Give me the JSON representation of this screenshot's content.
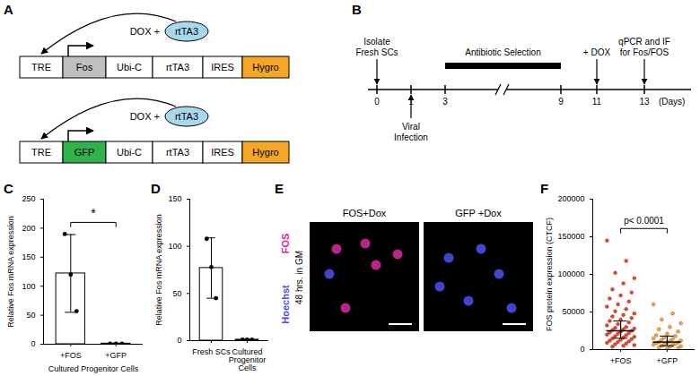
{
  "panel_labels": [
    "A",
    "B",
    "C",
    "D",
    "E",
    "F"
  ],
  "constructs": [
    {
      "parts": [
        "TRE",
        "Fos",
        "Ubi-C",
        "rtTA3",
        "IRES",
        "Hygro"
      ],
      "colors": [
        "#ffffff",
        "#bfbfbf",
        "#ffffff",
        "#ffffff",
        "#ffffff",
        "#f5a623"
      ],
      "inducer": "DOX +",
      "activator": "rtTA3",
      "activator_color": "#a8d8ee"
    },
    {
      "parts": [
        "TRE",
        "GFP",
        "Ubi-C",
        "rtTA3",
        "IRES",
        "Hygro"
      ],
      "colors": [
        "#ffffff",
        "#2fb34a",
        "#ffffff",
        "#ffffff",
        "#ffffff",
        "#f5a623"
      ],
      "inducer": "DOX +",
      "activator": "rtTA3",
      "activator_color": "#a8d8ee"
    }
  ],
  "timeline": {
    "axis_label": "(Days)",
    "days": [
      0,
      1,
      3,
      9,
      11,
      13
    ],
    "events": [
      {
        "day": 0,
        "text": "Isolate Fresh SCs"
      },
      {
        "day": 1,
        "text": "Viral Infection"
      },
      {
        "day": 11,
        "text": "+ DOX"
      },
      {
        "day": 13,
        "text": "qPCR and IF for Fos/FOS"
      }
    ],
    "interval": {
      "from": 3,
      "to": 9,
      "text": "Antibiotic Selection"
    }
  },
  "images": {
    "row_label": "48 hrs. in GM",
    "stains": [
      {
        "name": "FOS",
        "color": "#e0218a"
      },
      {
        "name": "Hoechst",
        "color": "#4a4ae6"
      }
    ],
    "panels": [
      "FOS+Dox",
      "GFP +Dox"
    ]
  },
  "chart_data": [
    {
      "type": "bar",
      "categories": [
        "+FOS",
        "+GFP"
      ],
      "xlabel": "Cultured Progenitor Cells",
      "ylabel": "Relative Fos mRNA expression",
      "values": [
        122,
        1
      ],
      "error": [
        67,
        0.5
      ],
      "points": [
        [
          190,
          120,
          57
        ],
        [
          1,
          1,
          1
        ]
      ],
      "color": "#ffffff",
      "ylim": [
        0,
        250
      ],
      "yticks": [
        0,
        50,
        100,
        150,
        200,
        250
      ],
      "annotation": "*"
    },
    {
      "type": "bar",
      "categories": [
        "Fresh SCs",
        "Cultured Progenitor Cells"
      ],
      "ylabel": "Relative Fos mRNA expression",
      "values": [
        77,
        1
      ],
      "error": [
        32,
        0.3
      ],
      "points": [
        [
          108,
          78,
          45
        ],
        [
          1,
          1,
          1
        ]
      ],
      "color": "#ffffff",
      "ylim": [
        0,
        150
      ],
      "yticks": [
        0,
        50,
        100,
        150
      ]
    },
    {
      "type": "strip",
      "categories": [
        "+FOS",
        "+GFP"
      ],
      "ylabel": "FOS protein expression (CTCF)",
      "median": [
        25000,
        10000
      ],
      "error_low": [
        15000,
        5000
      ],
      "error_high": [
        38000,
        18000
      ],
      "points": [
        [
          145000,
          118000,
          102000,
          95000,
          88000,
          80000,
          76000,
          72000,
          68000,
          64000,
          60000,
          57000,
          54000,
          51000,
          48000,
          46000,
          44000,
          42000,
          40000,
          38000,
          36000,
          34000,
          32000,
          30000,
          29000,
          28000,
          27000,
          26000,
          25000,
          24000,
          23000,
          22000,
          21000,
          20000,
          19000,
          18000,
          17000,
          16000,
          15000,
          14000,
          13000,
          12000,
          11000,
          10000,
          9000,
          8000,
          7000,
          6000,
          5000,
          4000
        ],
        [
          60000,
          48000,
          40000,
          35000,
          30000,
          27000,
          24000,
          21000,
          19000,
          18000,
          16000,
          15000,
          14000,
          13000,
          12000,
          11000,
          10000,
          9500,
          9000,
          8500,
          8000,
          7000,
          6500,
          6000,
          5000,
          4500,
          4000,
          3000,
          2000,
          1000
        ]
      ],
      "colors": [
        "#e8452c",
        "#f2a93b"
      ],
      "ylim": [
        0,
        200000
      ],
      "yticks": [
        0,
        50000,
        100000,
        150000,
        200000
      ],
      "annotation": "p< 0.0001"
    }
  ]
}
